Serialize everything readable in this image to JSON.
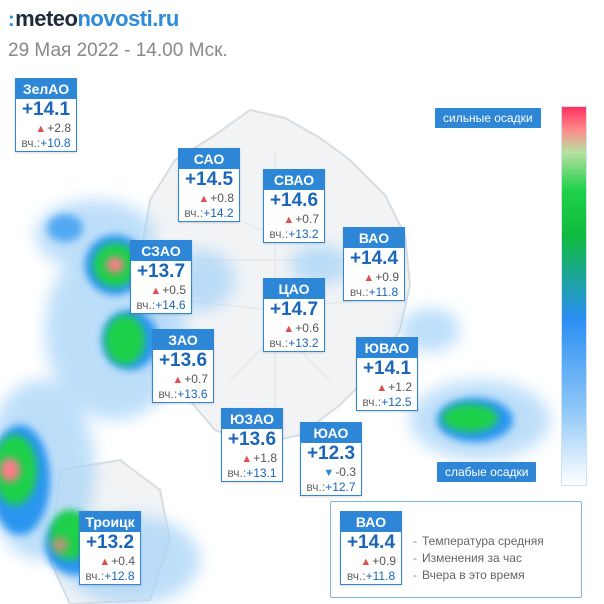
{
  "brand": {
    "dots": ":",
    "part1": "meteo",
    "part2": "novosti.ru"
  },
  "date": "29 Мая 2022 - 14.00 Мск.",
  "colors": {
    "card_header": "#2d86d6",
    "temp_text": "#1b66b8",
    "rise_marker": "#e05050",
    "fall_marker": "#2d86d6",
    "heavy_precip": "#ff3060",
    "moderate_precip": "#1fd14a",
    "light_precip": "#8ec7f7"
  },
  "scale": {
    "top_label": "сильные осадки",
    "bottom_label": "слабые осадки"
  },
  "yest_label": "вч.:",
  "districts": [
    {
      "name": "ЗелАО",
      "temp": "+14.1",
      "trend": "up",
      "change": "+2.8",
      "yesterday": "+10.8"
    },
    {
      "name": "САО",
      "temp": "+14.5",
      "trend": "up",
      "change": "+0.8",
      "yesterday": "+14.2"
    },
    {
      "name": "СВАО",
      "temp": "+14.6",
      "trend": "up",
      "change": "+0.7",
      "yesterday": "+13.2"
    },
    {
      "name": "ВАО",
      "temp": "+14.4",
      "trend": "up",
      "change": "+0.9",
      "yesterday": "+11.8"
    },
    {
      "name": "СЗАО",
      "temp": "+13.7",
      "trend": "up",
      "change": "+0.5",
      "yesterday": "+14.6"
    },
    {
      "name": "ЦАО",
      "temp": "+14.7",
      "trend": "up",
      "change": "+0.6",
      "yesterday": "+13.2"
    },
    {
      "name": "ЗАО",
      "temp": "+13.6",
      "trend": "up",
      "change": "+0.7",
      "yesterday": "+13.6"
    },
    {
      "name": "ЮВАО",
      "temp": "+14.1",
      "trend": "up",
      "change": "+1.2",
      "yesterday": "+12.5"
    },
    {
      "name": "ЮЗАО",
      "temp": "+13.6",
      "trend": "up",
      "change": "+1.8",
      "yesterday": "+13.1"
    },
    {
      "name": "ЮАО",
      "temp": "+12.3",
      "trend": "down",
      "change": "-0.3",
      "yesterday": "+12.7"
    },
    {
      "name": "Троицк",
      "temp": "+13.2",
      "trend": "up",
      "change": "+0.4",
      "yesterday": "+12.8"
    }
  ],
  "legend": {
    "sample": {
      "name": "ВАО",
      "temp": "+14.4",
      "trend": "up",
      "change": "+0.9",
      "yesterday": "+11.8"
    },
    "line1": "Температура средняя",
    "line2": "Изменения за час",
    "line3": "Вчера в это время"
  }
}
